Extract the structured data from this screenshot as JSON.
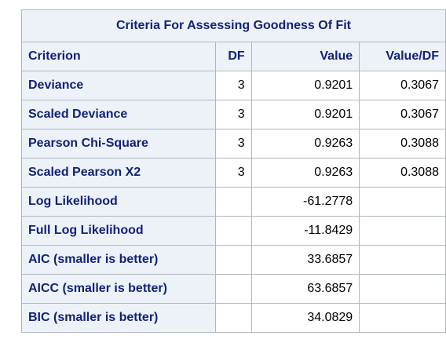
{
  "table": {
    "title": "Criteria For Assessing Goodness Of Fit",
    "headers": [
      "Criterion",
      "DF",
      "Value",
      "Value/DF"
    ],
    "rows": [
      {
        "criterion": "Deviance",
        "df": "3",
        "value": "0.9201",
        "value_df": "0.3067"
      },
      {
        "criterion": "Scaled Deviance",
        "df": "3",
        "value": "0.9201",
        "value_df": "0.3067"
      },
      {
        "criterion": "Pearson Chi-Square",
        "df": "3",
        "value": "0.9263",
        "value_df": "0.3088"
      },
      {
        "criterion": "Scaled Pearson X2",
        "df": "3",
        "value": "0.9263",
        "value_df": "0.3088"
      },
      {
        "criterion": "Log Likelihood",
        "df": "",
        "value": "-61.2778",
        "value_df": ""
      },
      {
        "criterion": "Full Log Likelihood",
        "df": "",
        "value": "-11.8429",
        "value_df": ""
      },
      {
        "criterion": "AIC (smaller is better)",
        "df": "",
        "value": "33.6857",
        "value_df": ""
      },
      {
        "criterion": "AICC (smaller is better)",
        "df": "",
        "value": "63.6857",
        "value_df": ""
      },
      {
        "criterion": "BIC (smaller is better)",
        "df": "",
        "value": "34.0829",
        "value_df": ""
      }
    ]
  },
  "colors": {
    "header_bg": "#edf2f9",
    "header_text": "#112277",
    "border": "#b0b7bb"
  }
}
